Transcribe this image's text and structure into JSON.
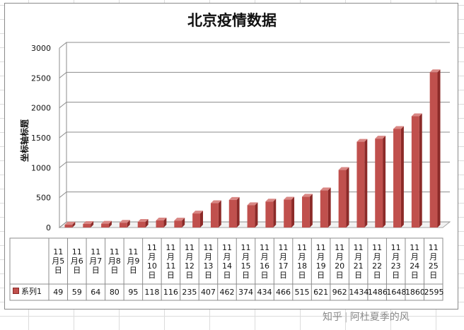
{
  "watermark": {
    "site": "知乎",
    "author": "阿杜夏季的风"
  },
  "chart_data": {
    "type": "bar",
    "title": "北京疫情数据",
    "ylabel": "坐标轴标题",
    "xlabel": "",
    "ylim": [
      0,
      3000
    ],
    "yticks": [
      0,
      500,
      1000,
      1500,
      2000,
      2500,
      3000
    ],
    "grid": true,
    "legend": "data-table",
    "categories": [
      "11\n月5\n日",
      "11\n月6\n日",
      "11\n月7\n日",
      "11\n月8\n日",
      "11\n月9\n日",
      "11\n月\n10\n日",
      "11\n月\n11\n日",
      "11\n月\n12\n日",
      "11\n月\n13\n日",
      "11\n月\n14\n日",
      "11\n月\n15\n日",
      "11\n月\n16\n日",
      "11\n月\n17\n日",
      "11\n月\n18\n日",
      "11\n月\n19\n日",
      "11\n月\n20\n日",
      "11\n月\n21\n日",
      "11\n月\n22\n日",
      "11\n月\n23\n日",
      "11\n月\n24\n日",
      "11\n月\n25\n日"
    ],
    "series": [
      {
        "name": "系列1",
        "color": "#c0504d",
        "values": [
          49,
          59,
          64,
          80,
          95,
          118,
          116,
          235,
          407,
          462,
          374,
          434,
          466,
          515,
          621,
          962,
          1434,
          1486,
          1648,
          1860,
          2595
        ]
      }
    ]
  }
}
